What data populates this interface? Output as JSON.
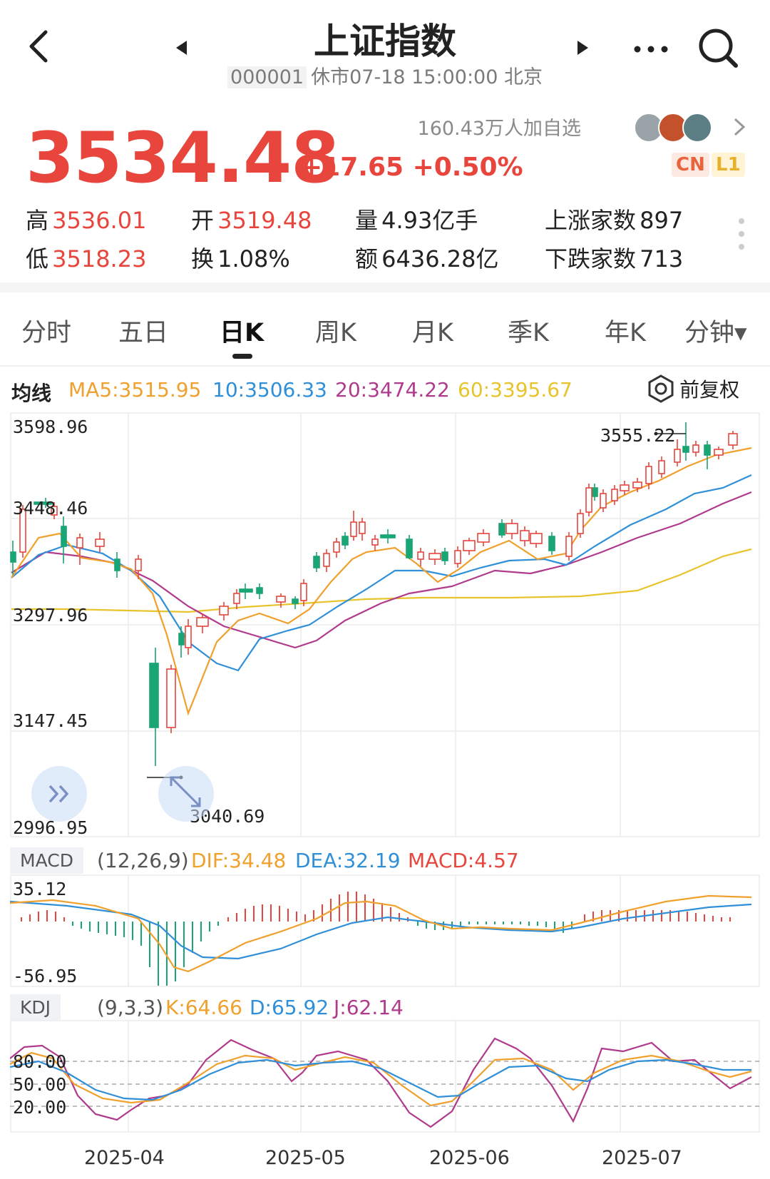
{
  "header": {
    "title": "上证指数",
    "code": "000001",
    "status": "休市07-18 15:00:00 北京"
  },
  "quote": {
    "price": "3534.48",
    "change": "+17.65 +0.50%",
    "followers": "160.43万人加自选",
    "badges": [
      "CN",
      "L1"
    ]
  },
  "stats": {
    "high_label": "高",
    "high": "3536.01",
    "low_label": "低",
    "low": "3518.23",
    "open_label": "开",
    "open": "3519.48",
    "turnover_label": "换",
    "turnover": "1.08%",
    "volume_label": "量",
    "volume": "4.93亿手",
    "amount_label": "额",
    "amount": "6436.28亿",
    "up_label": "上涨家数",
    "up": "897",
    "down_label": "下跌家数",
    "down": "713"
  },
  "tabs": [
    "分时",
    "五日",
    "日K",
    "周K",
    "月K",
    "季K",
    "年K",
    "分钟▾"
  ],
  "active_tab": 2,
  "ma": {
    "label": "均线",
    "ma5": "MA5:3515.95",
    "ma10": "10:3506.33",
    "ma20": "20:3474.22",
    "ma60": "60:3395.67",
    "adjust": "前复权"
  },
  "colors": {
    "up": "#e8453c",
    "down": "#1aa574",
    "ma5": "#f0a02c",
    "ma10": "#2f8fd8",
    "ma20": "#b03a8c",
    "ma60": "#e8c42c"
  },
  "chart_data": {
    "type": "candlestick",
    "y_ticks": [
      "3598.96",
      "3448.46",
      "3297.96",
      "3147.45",
      "2996.95"
    ],
    "ylim": [
      2996.95,
      3598.96
    ],
    "max_label": "3555.22",
    "min_label": "3040.69",
    "x_ticks": [
      "2025-04",
      "2025-05",
      "2025-06",
      "2025-07"
    ]
  },
  "macd": {
    "tag": "MACD",
    "params": "(12,26,9)",
    "dif": "DIF:34.48",
    "dea": "DEA:32.19",
    "macd": "MACD:4.57",
    "y_ticks": [
      "35.12",
      "-56.95"
    ]
  },
  "kdj": {
    "tag": "KDJ",
    "params": "(9,3,3)",
    "k": "K:64.66",
    "d": "D:65.92",
    "j": "J:62.14",
    "y_ticks": [
      "80.00",
      "50.00",
      "20.00"
    ]
  }
}
